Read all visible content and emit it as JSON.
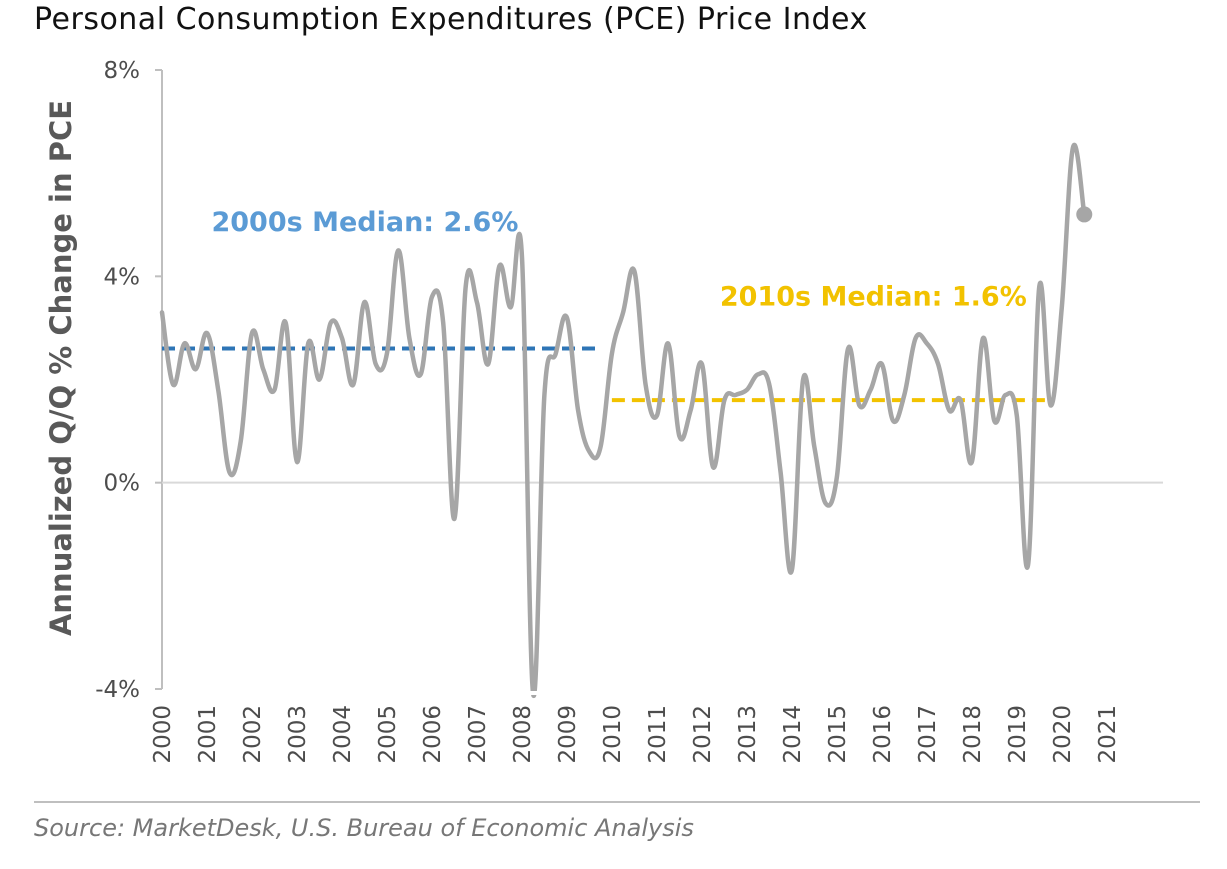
{
  "colors": {
    "series": "#a6a6a6",
    "median_2000s": "#2e75b6",
    "median_2010s": "#f2c200",
    "annotation_2000s": "#5b9bd5",
    "annotation_2010s": "#f2c200",
    "axis": "#bfbfbf",
    "separator": "#bfbfbf"
  },
  "source": "Source: MarketDesk, U.S. Bureau of Economic Analysis",
  "chart_data": {
    "type": "line",
    "title": "Personal Consumption Expenditures (PCE) Price Index",
    "ylabel": "Annualized Q/Q % Change in PCE",
    "xlabel": "",
    "ylim": [
      -4,
      8
    ],
    "yticks": [
      8,
      4,
      0,
      -4
    ],
    "ytick_labels": [
      "8%",
      "4%",
      "0%",
      "-4%"
    ],
    "xlim": [
      2000,
      2022.25
    ],
    "xticks": [
      "2000",
      "2001",
      "2002",
      "2003",
      "2004",
      "2005",
      "2006",
      "2007",
      "2008",
      "2009",
      "2010",
      "2011",
      "2012",
      "2013",
      "2014",
      "2015",
      "2016",
      "2017",
      "2018",
      "2019",
      "2020",
      "2021"
    ],
    "grid": false,
    "zero_line": true,
    "series": [
      {
        "values": [
          3.3,
          1.9,
          2.7,
          2.2,
          2.9,
          1.8,
          0.2,
          0.8,
          2.9,
          2.2,
          1.8,
          3.1,
          0.4,
          2.7,
          2.0,
          3.1,
          2.8,
          1.9,
          3.5,
          2.3,
          2.5,
          4.5,
          2.8,
          2.1,
          3.6,
          3.1,
          -0.7,
          3.8,
          3.5,
          2.3,
          4.2,
          3.4,
          4.4,
          -4.1,
          1.7,
          2.5,
          3.2,
          1.4,
          0.6,
          0.7,
          2.5,
          3.3,
          4.1,
          1.9,
          1.3,
          2.7,
          0.9,
          1.4,
          2.3,
          0.3,
          1.6,
          1.7,
          1.8,
          2.1,
          1.9,
          0.2,
          -1.7,
          2.0,
          0.7,
          -0.4,
          0.1,
          2.6,
          1.5,
          1.8,
          2.3,
          1.2,
          1.7,
          2.8,
          2.7,
          2.3,
          1.4,
          1.6,
          0.4,
          2.8,
          1.2,
          1.7,
          1.3,
          -1.6,
          3.8,
          1.5,
          3.4,
          6.5,
          5.2
        ],
        "x_start": 2000.0,
        "x_step": 0.25,
        "end_marker": true
      }
    ],
    "reference_lines": [
      {
        "label": "2000s Median: 2.6%",
        "value": 2.6,
        "x_from": 2000.0,
        "x_to": 2009.75
      },
      {
        "label": "2010s Median: 1.6%",
        "value": 1.6,
        "x_from": 2010.0,
        "x_to": 2019.75
      }
    ]
  }
}
